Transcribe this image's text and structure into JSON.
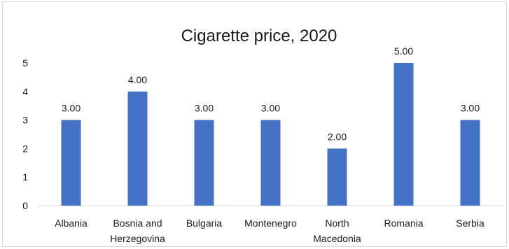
{
  "chart_data": {
    "type": "bar",
    "title": "Cigarette price, 2020",
    "xlabel": "",
    "ylabel": "",
    "categories": [
      [
        "Albania"
      ],
      [
        "Bosnia and",
        "Herzegovina"
      ],
      [
        "Bulgaria"
      ],
      [
        "Montenegro"
      ],
      [
        "North",
        "Macedonia"
      ],
      [
        "Romania"
      ],
      [
        "Serbia"
      ]
    ],
    "values": [
      3,
      4,
      3,
      3,
      2,
      5,
      3
    ],
    "data_labels": [
      "3.00",
      "4.00",
      "3.00",
      "3.00",
      "2.00",
      "5.00",
      "3.00"
    ],
    "ylim": [
      0,
      5
    ],
    "yticks": [
      0,
      1,
      2,
      3,
      4,
      5
    ],
    "grid": false,
    "legend": "none",
    "bar_color": "#4472c4"
  }
}
